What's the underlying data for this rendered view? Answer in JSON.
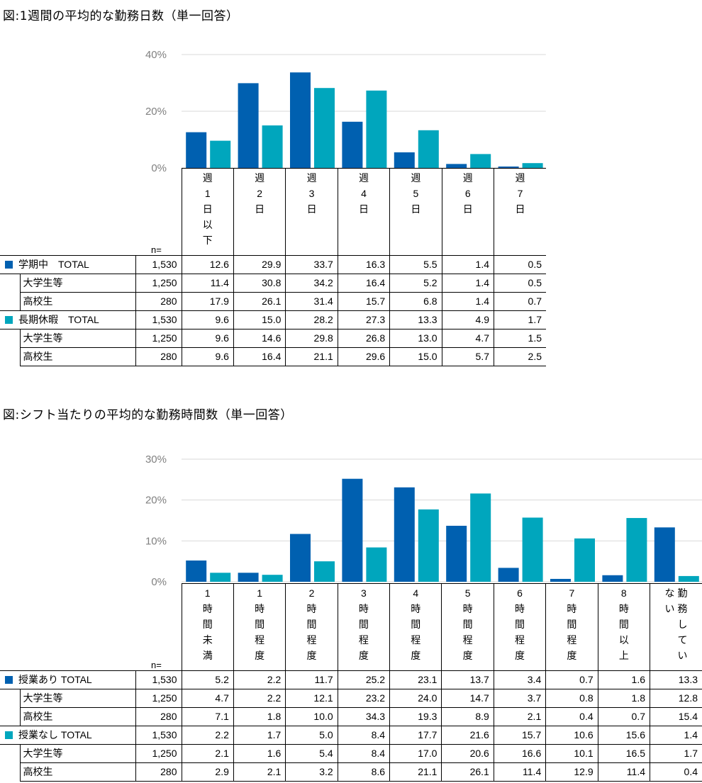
{
  "charts": [
    {
      "title": "図:1週間の平均的な勤務日数（単一回答）",
      "chart_data": {
        "type": "bar",
        "categories": [
          "週1日以下",
          "週2日",
          "週3日",
          "週4日",
          "週5日",
          "週6日",
          "週7日"
        ],
        "category_lines": [
          [
            "週",
            "1",
            "日",
            "以",
            "下"
          ],
          [
            "週",
            "2",
            "日"
          ],
          [
            "週",
            "3",
            "日"
          ],
          [
            "週",
            "4",
            "日"
          ],
          [
            "週",
            "5",
            "日"
          ],
          [
            "週",
            "6",
            "日"
          ],
          [
            "週",
            "7",
            "日"
          ]
        ],
        "yticks": [
          "0%",
          "20%",
          "40%"
        ],
        "ylim": [
          0,
          40
        ],
        "series": [
          {
            "name": "学期中　TOTAL",
            "color": "#0060b0",
            "values": [
              12.6,
              29.9,
              33.7,
              16.3,
              5.5,
              1.4,
              0.5
            ]
          },
          {
            "name": "長期休暇　TOTAL",
            "color": "#00a6bd",
            "values": [
              9.6,
              15.0,
              28.2,
              27.3,
              13.3,
              4.9,
              1.7
            ]
          }
        ]
      },
      "table": {
        "n_label": "n=",
        "groups": [
          {
            "color": "#0060b0",
            "rows": [
              {
                "label": "学期中　TOTAL",
                "n": "1,530",
                "values": [
                  "12.6",
                  "29.9",
                  "33.7",
                  "16.3",
                  "5.5",
                  "1.4",
                  "0.5"
                ]
              },
              {
                "label": "大学生等",
                "n": "1,250",
                "values": [
                  "11.4",
                  "30.8",
                  "34.2",
                  "16.4",
                  "5.2",
                  "1.4",
                  "0.5"
                ]
              },
              {
                "label": "高校生",
                "n": "280",
                "values": [
                  "17.9",
                  "26.1",
                  "31.4",
                  "15.7",
                  "6.8",
                  "1.4",
                  "0.7"
                ]
              }
            ]
          },
          {
            "color": "#00a6bd",
            "rows": [
              {
                "label": "長期休暇　TOTAL",
                "n": "1,530",
                "values": [
                  "9.6",
                  "15.0",
                  "28.2",
                  "27.3",
                  "13.3",
                  "4.9",
                  "1.7"
                ]
              },
              {
                "label": "大学生等",
                "n": "1,250",
                "values": [
                  "9.6",
                  "14.6",
                  "29.8",
                  "26.8",
                  "13.0",
                  "4.7",
                  "1.5"
                ]
              },
              {
                "label": "高校生",
                "n": "280",
                "values": [
                  "9.6",
                  "16.4",
                  "21.1",
                  "29.6",
                  "15.0",
                  "5.7",
                  "2.5"
                ]
              }
            ]
          }
        ]
      }
    },
    {
      "title": "図:シフト当たりの平均的な勤務時間数（単一回答）",
      "chart_data": {
        "type": "bar",
        "categories": [
          "1時間未満",
          "1時間程度",
          "2時間程度",
          "3時間程度",
          "4時間程度",
          "5時間程度",
          "6時間程度",
          "7時間程度",
          "8時間以上",
          "勤務していない"
        ],
        "category_lines": [
          [
            "1",
            "時",
            "間",
            "未",
            "満"
          ],
          [
            "1",
            "時",
            "間",
            "程",
            "度"
          ],
          [
            "2",
            "時",
            "間",
            "程",
            "度"
          ],
          [
            "3",
            "時",
            "間",
            "程",
            "度"
          ],
          [
            "4",
            "時",
            "間",
            "程",
            "度"
          ],
          [
            "5",
            "時",
            "間",
            "程",
            "度"
          ],
          [
            "6",
            "時",
            "間",
            "程",
            "度"
          ],
          [
            "7",
            "時",
            "間",
            "程",
            "度"
          ],
          [
            "8",
            "時",
            "間",
            "以",
            "上"
          ],
          [
            "勤",
            "務",
            "し",
            "て",
            "い",
            "な",
            "い"
          ]
        ],
        "yticks": [
          "0%",
          "10%",
          "20%",
          "30%"
        ],
        "ylim": [
          0,
          30
        ],
        "series": [
          {
            "name": "授業あり TOTAL",
            "color": "#0060b0",
            "values": [
              5.2,
              2.2,
              11.7,
              25.2,
              23.1,
              13.7,
              3.4,
              0.7,
              1.6,
              13.3
            ]
          },
          {
            "name": "授業なし TOTAL",
            "color": "#00a6bd",
            "values": [
              2.2,
              1.7,
              5.0,
              8.4,
              17.7,
              21.6,
              15.7,
              10.6,
              15.6,
              1.4
            ]
          }
        ]
      },
      "table": {
        "n_label": "n=",
        "groups": [
          {
            "color": "#0060b0",
            "rows": [
              {
                "label": "授業あり TOTAL",
                "n": "1,530",
                "values": [
                  "5.2",
                  "2.2",
                  "11.7",
                  "25.2",
                  "23.1",
                  "13.7",
                  "3.4",
                  "0.7",
                  "1.6",
                  "13.3"
                ]
              },
              {
                "label": "大学生等",
                "n": "1,250",
                "values": [
                  "4.7",
                  "2.2",
                  "12.1",
                  "23.2",
                  "24.0",
                  "14.7",
                  "3.7",
                  "0.8",
                  "1.8",
                  "12.8"
                ]
              },
              {
                "label": "高校生",
                "n": "280",
                "values": [
                  "7.1",
                  "1.8",
                  "10.0",
                  "34.3",
                  "19.3",
                  "8.9",
                  "2.1",
                  "0.4",
                  "0.7",
                  "15.4"
                ]
              }
            ]
          },
          {
            "color": "#00a6bd",
            "rows": [
              {
                "label": "授業なし TOTAL",
                "n": "1,530",
                "values": [
                  "2.2",
                  "1.7",
                  "5.0",
                  "8.4",
                  "17.7",
                  "21.6",
                  "15.7",
                  "10.6",
                  "15.6",
                  "1.4"
                ]
              },
              {
                "label": "大学生等",
                "n": "1,250",
                "values": [
                  "2.1",
                  "1.6",
                  "5.4",
                  "8.4",
                  "17.0",
                  "20.6",
                  "16.6",
                  "10.1",
                  "16.5",
                  "1.7"
                ]
              },
              {
                "label": "高校生",
                "n": "280",
                "values": [
                  "2.9",
                  "2.1",
                  "3.2",
                  "8.6",
                  "21.1",
                  "26.1",
                  "11.4",
                  "12.9",
                  "11.4",
                  "0.4"
                ]
              }
            ]
          }
        ]
      }
    }
  ]
}
